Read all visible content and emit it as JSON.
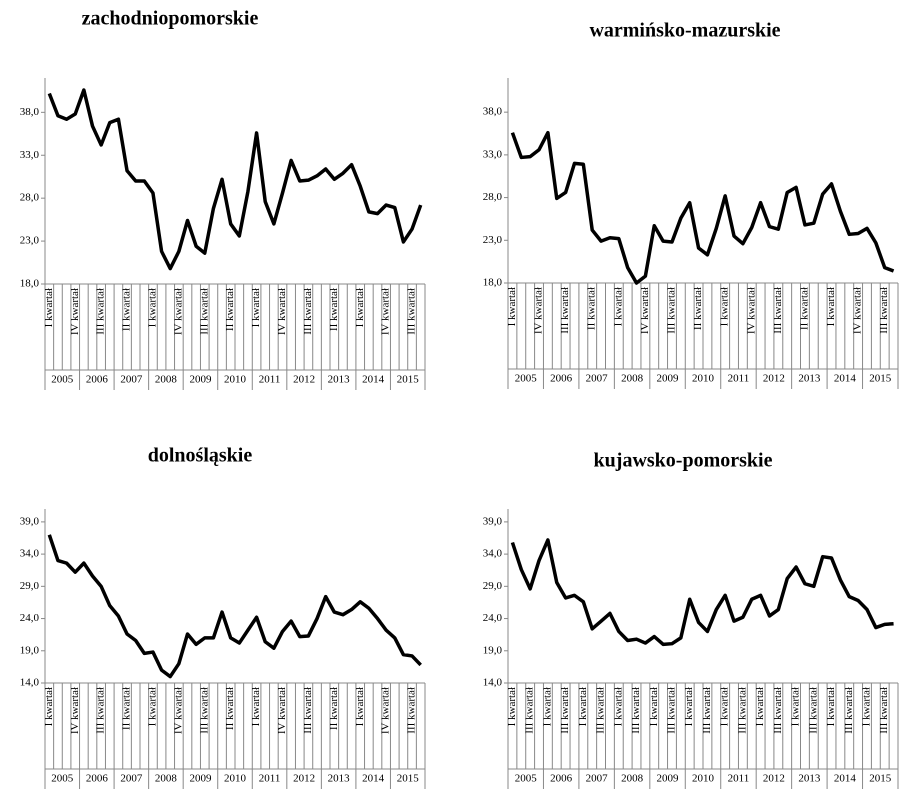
{
  "chart_data": [
    {
      "type": "line",
      "title": "zachodniopomorskie",
      "categories": [
        "I kwartał",
        null,
        null,
        "IV kwartał",
        null,
        null,
        "III kwartał",
        null,
        null,
        "II kwartał",
        null,
        null,
        "I kwartał",
        null,
        null,
        "IV kwartał",
        null,
        null,
        "III kwartał",
        null,
        null,
        "II kwartał",
        null,
        null,
        "I kwartał",
        null,
        null,
        "IV kwartał",
        null,
        null,
        "III kwartał",
        null,
        null,
        "II kwartał",
        null,
        null,
        "I kwartał",
        null,
        null,
        "IV kwartał",
        null,
        null,
        "III kwartał",
        null
      ],
      "groups": [
        "2005",
        "2006",
        "2007",
        "2008",
        "2009",
        "2010",
        "2011",
        "2012",
        "2013",
        "2014",
        "2015"
      ],
      "series": [
        {
          "color": "#000000",
          "values": [
            40.2,
            37.6,
            37.2,
            37.8,
            40.6,
            36.4,
            34.2,
            36.8,
            37.2,
            31.2,
            30.0,
            30.0,
            28.6,
            21.8,
            19.8,
            21.8,
            25.4,
            22.4,
            21.6,
            26.8,
            30.2,
            25.0,
            23.6,
            28.8,
            35.6,
            27.6,
            25.0,
            28.6,
            32.4,
            30.0,
            30.1,
            30.6,
            31.4,
            30.2,
            30.9,
            31.9,
            29.4,
            26.4,
            26.2,
            27.2,
            26.9,
            22.9,
            24.4,
            27.2
          ]
        }
      ],
      "ylim": [
        18,
        42
      ],
      "yticks": [
        {
          "value": 18,
          "label": "18,0"
        },
        {
          "value": 23,
          "label": "23,0"
        },
        {
          "value": 28,
          "label": "28,0"
        },
        {
          "value": 33,
          "label": "33,0"
        },
        {
          "value": 38,
          "label": "38,0"
        }
      ]
    },
    {
      "type": "line",
      "title": "warmińsko-mazurskie",
      "categories": [
        "I kwartał",
        null,
        null,
        "IV kwartał",
        null,
        null,
        "III kwartał",
        null,
        null,
        "II kwartał",
        null,
        null,
        "I kwartał",
        null,
        null,
        "IV kwartał",
        null,
        null,
        "III kwartał",
        null,
        null,
        "II kwartał",
        null,
        null,
        "I kwartał",
        null,
        null,
        "IV kwartał",
        null,
        null,
        "III kwartał",
        null,
        null,
        "II kwartał",
        null,
        null,
        "I kwartał",
        null,
        null,
        "IV kwartał",
        null,
        null,
        "III kwartał",
        null
      ],
      "groups": [
        "2005",
        "2006",
        "2007",
        "2008",
        "2009",
        "2010",
        "2011",
        "2012",
        "2013",
        "2014",
        "2015"
      ],
      "series": [
        {
          "color": "#000000",
          "values": [
            35.6,
            32.7,
            32.8,
            33.6,
            35.6,
            27.9,
            28.6,
            32.0,
            31.9,
            24.2,
            22.9,
            23.3,
            23.2,
            19.8,
            18.0,
            18.8,
            24.7,
            22.9,
            22.8,
            25.6,
            27.4,
            22.1,
            21.3,
            24.4,
            28.2,
            23.5,
            22.6,
            24.5,
            27.4,
            24.6,
            24.3,
            28.6,
            29.2,
            24.8,
            25.0,
            28.4,
            29.6,
            26.4,
            23.7,
            23.8,
            24.4,
            22.7,
            19.8,
            19.4
          ]
        }
      ],
      "ylim": [
        18,
        42
      ],
      "yticks": [
        {
          "value": 18,
          "label": "18,0"
        },
        {
          "value": 23,
          "label": "23,0"
        },
        {
          "value": 28,
          "label": "28,0"
        },
        {
          "value": 33,
          "label": "33,0"
        },
        {
          "value": 38,
          "label": "38,0"
        }
      ]
    },
    {
      "type": "line",
      "title": "dolnośląskie",
      "categories": [
        "I kwartał",
        null,
        null,
        "IV kwartał",
        null,
        null,
        "III kwartał",
        null,
        null,
        "II kwartał",
        null,
        null,
        "I kwartał",
        null,
        null,
        "IV kwartał",
        null,
        null,
        "III kwartał",
        null,
        null,
        "II kwartał",
        null,
        null,
        "I kwartał",
        null,
        null,
        "IV kwartał",
        null,
        null,
        "III kwartał",
        null,
        null,
        "II kwartał",
        null,
        null,
        "I kwartał",
        null,
        null,
        "IV kwartał",
        null,
        null,
        "III kwartał",
        null
      ],
      "groups": [
        "2005",
        "2006",
        "2007",
        "2008",
        "2009",
        "2010",
        "2011",
        "2012",
        "2013",
        "2014",
        "2015"
      ],
      "series": [
        {
          "color": "#000000",
          "values": [
            37.0,
            33.0,
            32.6,
            31.2,
            32.6,
            30.6,
            29.0,
            26.0,
            24.4,
            21.6,
            20.6,
            18.6,
            18.8,
            16.0,
            15.0,
            17.0,
            21.6,
            20.0,
            21.0,
            21.0,
            25.0,
            21.0,
            20.2,
            22.2,
            24.2,
            20.4,
            19.4,
            22.0,
            23.6,
            21.2,
            21.3,
            24.0,
            27.4,
            25.0,
            24.6,
            25.4,
            26.6,
            25.6,
            24.0,
            22.2,
            21.0,
            18.4,
            18.2,
            16.8
          ]
        }
      ],
      "ylim": [
        14,
        41
      ],
      "yticks": [
        {
          "value": 14,
          "label": "14,0"
        },
        {
          "value": 19,
          "label": "19,0"
        },
        {
          "value": 24,
          "label": "24,0"
        },
        {
          "value": 29,
          "label": "29,0"
        },
        {
          "value": 34,
          "label": "34,0"
        },
        {
          "value": 39,
          "label": "39,0"
        }
      ]
    },
    {
      "type": "line",
      "title": "kujawsko-pomorskie",
      "categories": [
        "I kwartał",
        null,
        "III kwartał",
        null,
        "I kwartał",
        null,
        "III kwartał",
        null,
        "I kwartał",
        null,
        "III kwartał",
        null,
        "I kwartał",
        null,
        "III kwartał",
        null,
        "I kwartał",
        null,
        "III kwartał",
        null,
        "I kwartał",
        null,
        "III kwartał",
        null,
        "I kwartał",
        null,
        "III kwartał",
        null,
        "I kwartał",
        null,
        "III kwartał",
        null,
        "I kwartał",
        null,
        "III kwartał",
        null,
        "I kwartał",
        null,
        "III kwartał",
        null,
        "I kwartał",
        null,
        "III kwartał",
        null
      ],
      "groups": [
        "2005",
        "2006",
        "2007",
        "2008",
        "2009",
        "2010",
        "2011",
        "2012",
        "2013",
        "2014",
        "2015"
      ],
      "series": [
        {
          "color": "#000000",
          "values": [
            35.8,
            31.6,
            28.6,
            33.0,
            36.2,
            29.6,
            27.2,
            27.6,
            26.6,
            22.4,
            23.6,
            24.8,
            22.0,
            20.6,
            20.8,
            20.2,
            21.2,
            20.0,
            20.1,
            21.0,
            27.0,
            23.4,
            22.0,
            25.4,
            27.6,
            23.6,
            24.2,
            27.0,
            27.6,
            24.4,
            25.4,
            30.2,
            32.0,
            29.4,
            29.0,
            33.6,
            33.4,
            30.0,
            27.4,
            26.8,
            25.4,
            22.6,
            23.1,
            23.2
          ]
        }
      ],
      "ylim": [
        14,
        41
      ],
      "yticks": [
        {
          "value": 14,
          "label": "14,0"
        },
        {
          "value": 19,
          "label": "19,0"
        },
        {
          "value": 24,
          "label": "24,0"
        },
        {
          "value": 29,
          "label": "29,0"
        },
        {
          "value": 34,
          "label": "34,0"
        },
        {
          "value": 39,
          "label": "39,0"
        }
      ]
    }
  ]
}
